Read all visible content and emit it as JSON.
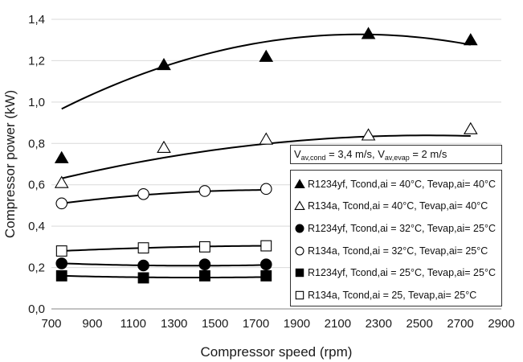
{
  "chart_data": {
    "type": "scatter",
    "title": "",
    "xlabel": "Compressor speed (rpm)",
    "ylabel": "Compressor power (kW)",
    "xlim": [
      700,
      2900
    ],
    "ylim": [
      0.0,
      1.4
    ],
    "x_ticks": [
      "700",
      "900",
      "1100",
      "1300",
      "1500",
      "1700",
      "1900",
      "2100",
      "2300",
      "2500",
      "2700",
      "2900"
    ],
    "y_ticks": [
      "0,0",
      "0,2",
      "0,4",
      "0,6",
      "0,8",
      "1,0",
      "1,2",
      "1,4"
    ],
    "grid": "horizontal",
    "legend_position": "bottom-right",
    "conditions_note": {
      "prefix1": "V",
      "sub1": "av,cond",
      "mid": " = 3,4 m/s, V",
      "sub2": "av,evap",
      "suffix": " = 2 m/s"
    },
    "series": [
      {
        "name": "R1234yf, Tcond,ai = 40°C, Tevap,ai= 40°C",
        "marker": "triangle",
        "filled": true,
        "x": [
          750,
          1250,
          1750,
          2250,
          2750
        ],
        "y": [
          0.73,
          1.18,
          1.22,
          1.33,
          1.3
        ],
        "fit": [
          -1.7e-07,
          0.00075,
          0.5
        ]
      },
      {
        "name": "R134a, Tcond,ai = 40°C, Tevap,ai= 40°C",
        "marker": "triangle",
        "filled": false,
        "x": [
          750,
          1250,
          1750,
          2250,
          2750
        ],
        "y": [
          0.61,
          0.78,
          0.82,
          0.84,
          0.87
        ],
        "fit": [
          -6.5e-08,
          0.00033,
          0.42
        ]
      },
      {
        "name": "R1234yf, Tcond,ai = 32°C, Tevap,ai= 25°C",
        "marker": "circle",
        "filled": true,
        "x": [
          750,
          1150,
          1450,
          1750
        ],
        "y": [
          0.22,
          0.21,
          0.215,
          0.215
        ],
        "fit": [
          2.8e-08,
          -7.8e-05,
          0.2631
        ]
      },
      {
        "name": "R134a, Tcond,ai = 32°C, Tevap,ai= 25°C",
        "marker": "circle",
        "filled": false,
        "x": [
          750,
          1150,
          1450,
          1750
        ],
        "y": [
          0.51,
          0.555,
          0.57,
          0.58
        ],
        "fit": [
          -6e-08,
          0.000215,
          0.3826
        ]
      },
      {
        "name": "R1234yf, Tcond,ai = 25°C, Tevap,ai= 25°C",
        "marker": "square",
        "filled": true,
        "x": [
          750,
          1150,
          1450,
          1750
        ],
        "y": [
          0.16,
          0.15,
          0.16,
          0.16
        ],
        "fit": [
          2e-08,
          -5.6e-05,
          0.1908
        ]
      },
      {
        "name": "R134a, Tcond,ai = 25, Tevap,ai= 25°C",
        "marker": "square",
        "filled": false,
        "x": [
          750,
          1150,
          1450,
          1750
        ],
        "y": [
          0.28,
          0.295,
          0.3,
          0.305
        ],
        "fit": [
          -2e-08,
          7.5e-05,
          0.235
        ]
      }
    ]
  }
}
